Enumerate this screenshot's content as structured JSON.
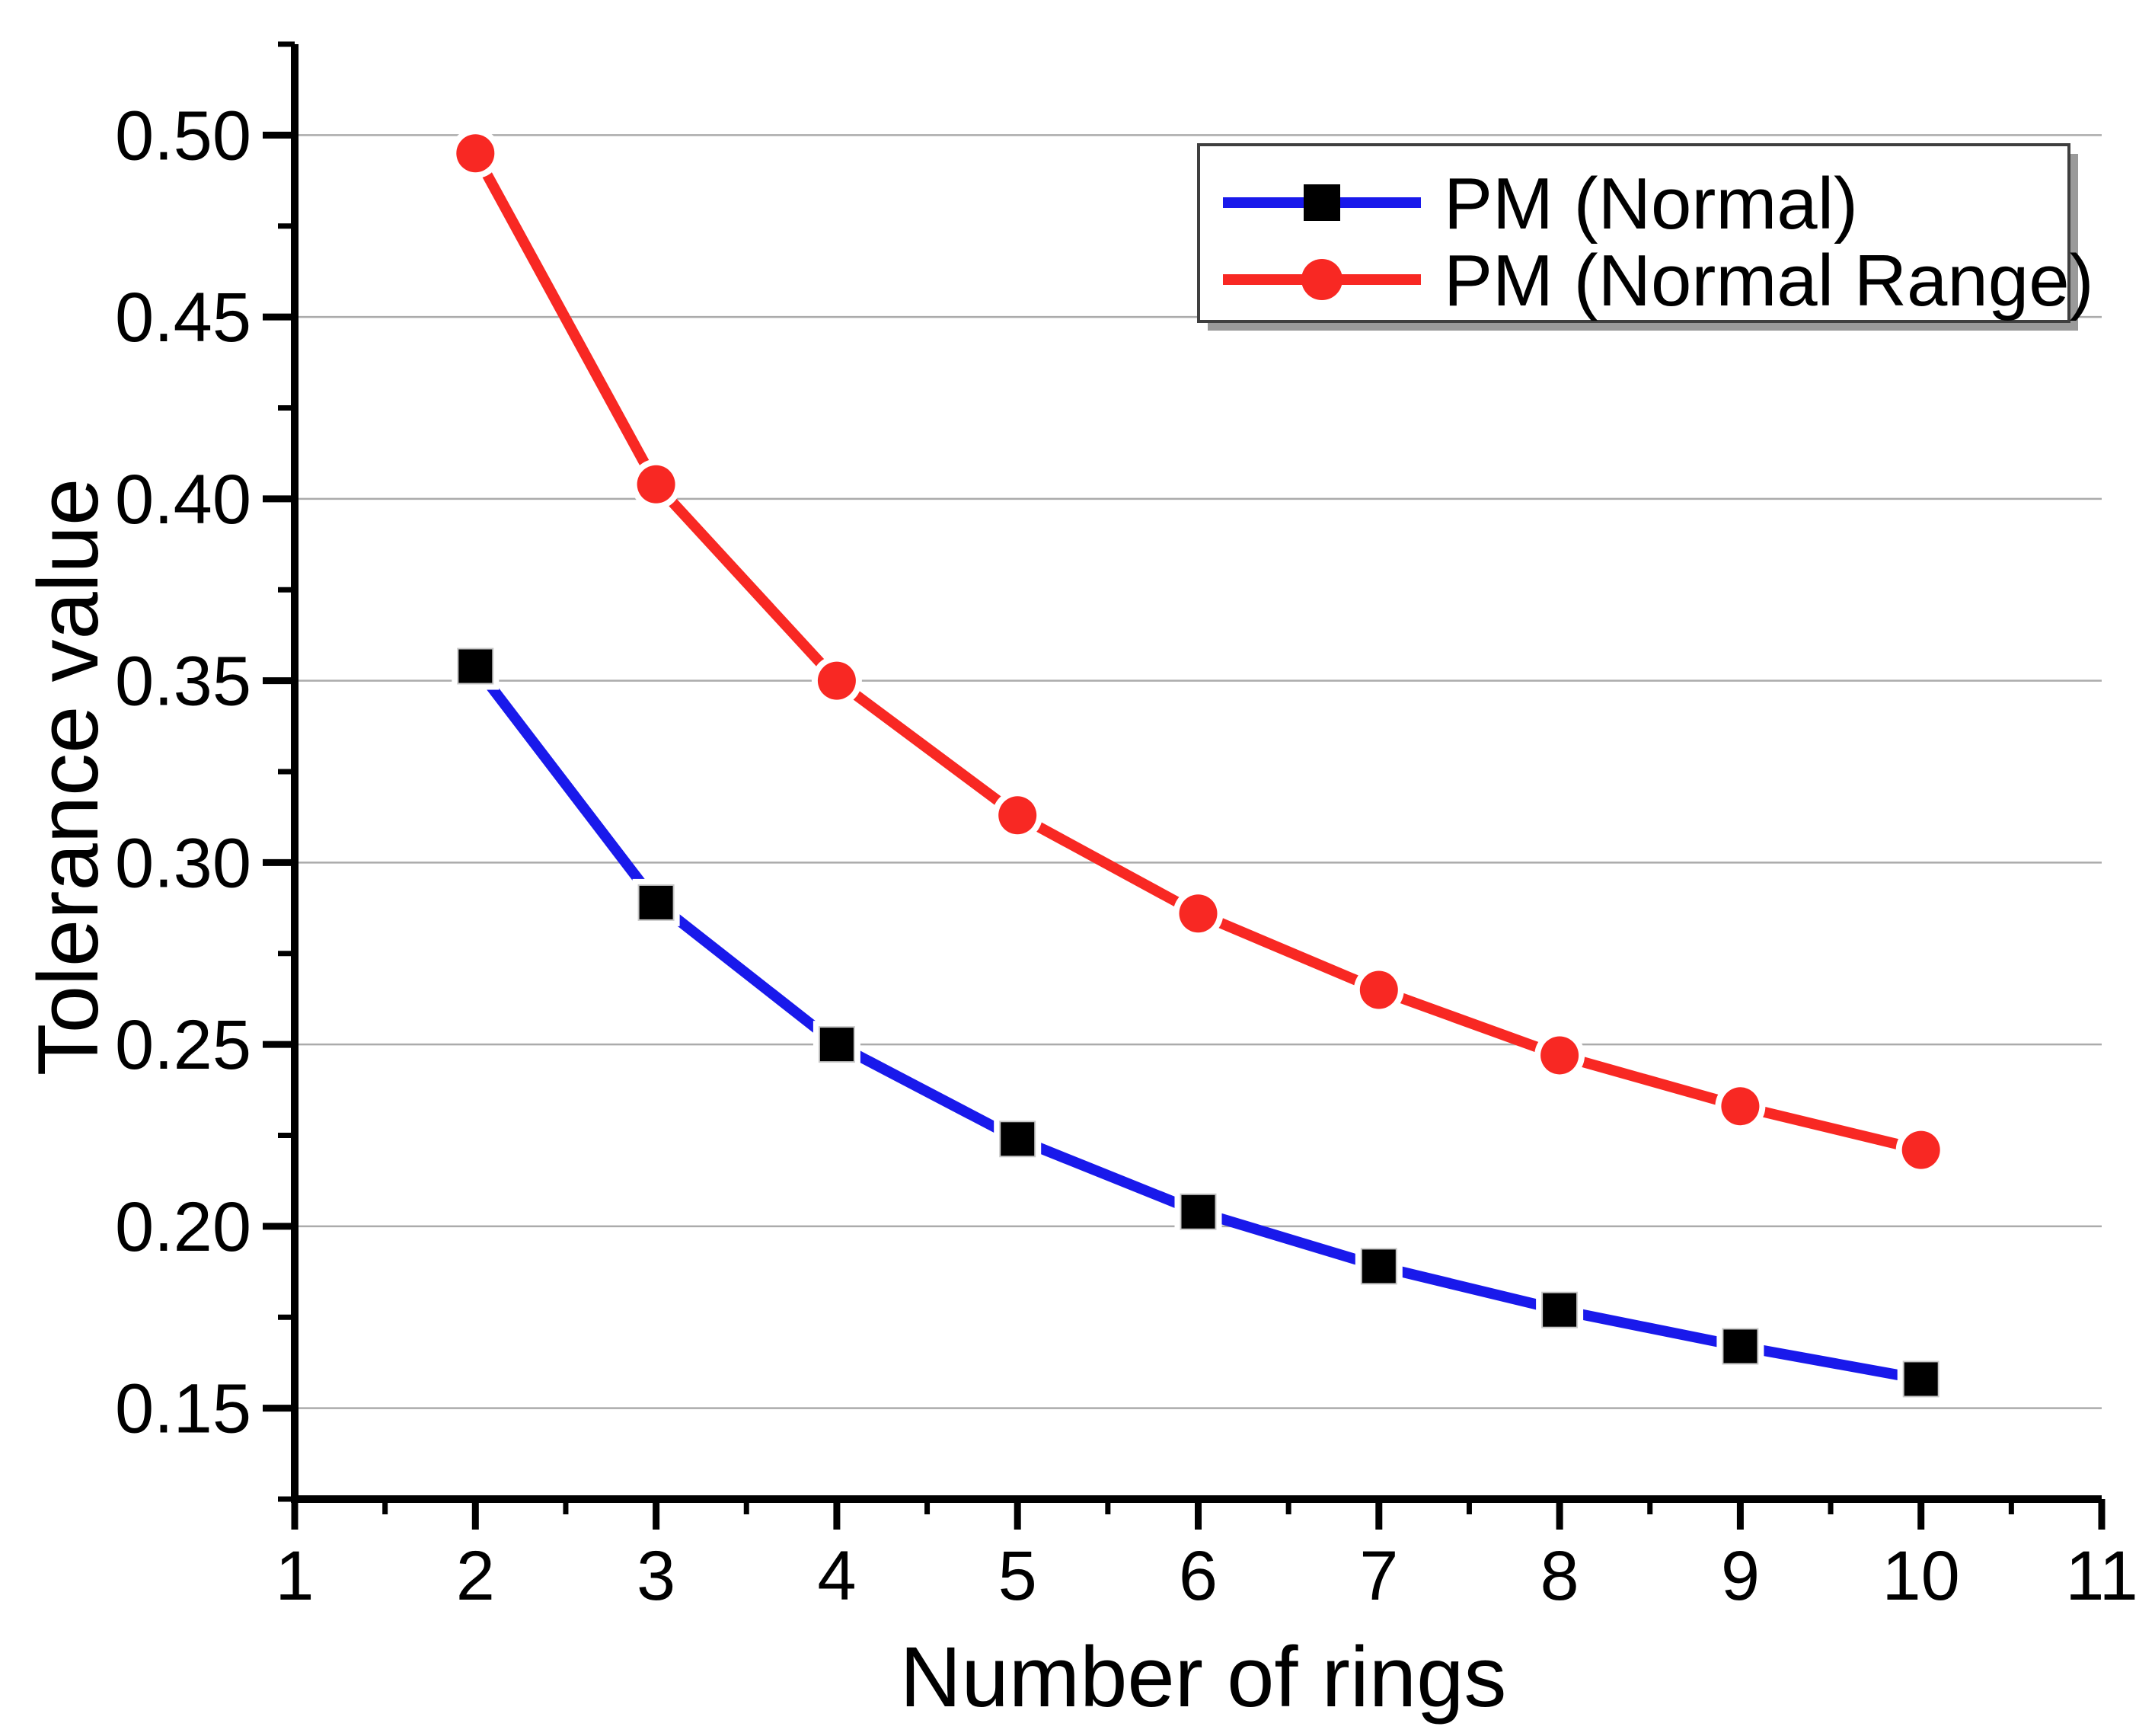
{
  "chart_data": {
    "type": "line",
    "title": "",
    "xlabel": "Number of rings",
    "ylabel": "Tolerance value",
    "x": [
      2,
      3,
      4,
      5,
      6,
      7,
      8,
      9,
      10
    ],
    "series": [
      {
        "name": "PM (Normal)",
        "line_color": "#1919eb",
        "marker": "square",
        "marker_color": "#000000",
        "values": [
          0.354,
          0.289,
          0.25,
          0.224,
          0.204,
          0.189,
          0.177,
          0.167,
          0.158
        ]
      },
      {
        "name": "PM (Normal Range)",
        "line_color": "#f82823",
        "marker": "circle",
        "marker_color": "#f82823",
        "values": [
          0.495,
          0.404,
          0.35,
          0.313,
          0.286,
          0.265,
          0.247,
          0.233,
          0.221
        ]
      }
    ],
    "xlim": [
      1,
      11
    ],
    "ylim": [
      0.125,
      0.525
    ],
    "x_major_ticks": [
      1,
      2,
      3,
      4,
      5,
      6,
      7,
      8,
      9,
      10,
      11
    ],
    "x_tick_labels": [
      "1",
      "2",
      "3",
      "4",
      "5",
      "6",
      "7",
      "8",
      "9",
      "10",
      "11"
    ],
    "x_minor_step": 0.5,
    "y_major_ticks": [
      0.15,
      0.2,
      0.25,
      0.3,
      0.35,
      0.4,
      0.45,
      0.5
    ],
    "y_tick_labels": [
      "0.15",
      "0.20",
      "0.25",
      "0.30",
      "0.35",
      "0.40",
      "0.45",
      "0.50"
    ],
    "y_minor_step": 0.025,
    "grid": "horizontal-major",
    "legend_position": "top-right",
    "colors": {
      "axis": "#000000",
      "grid": "#ababab",
      "background": "#ffffff",
      "text": "#000000"
    }
  }
}
